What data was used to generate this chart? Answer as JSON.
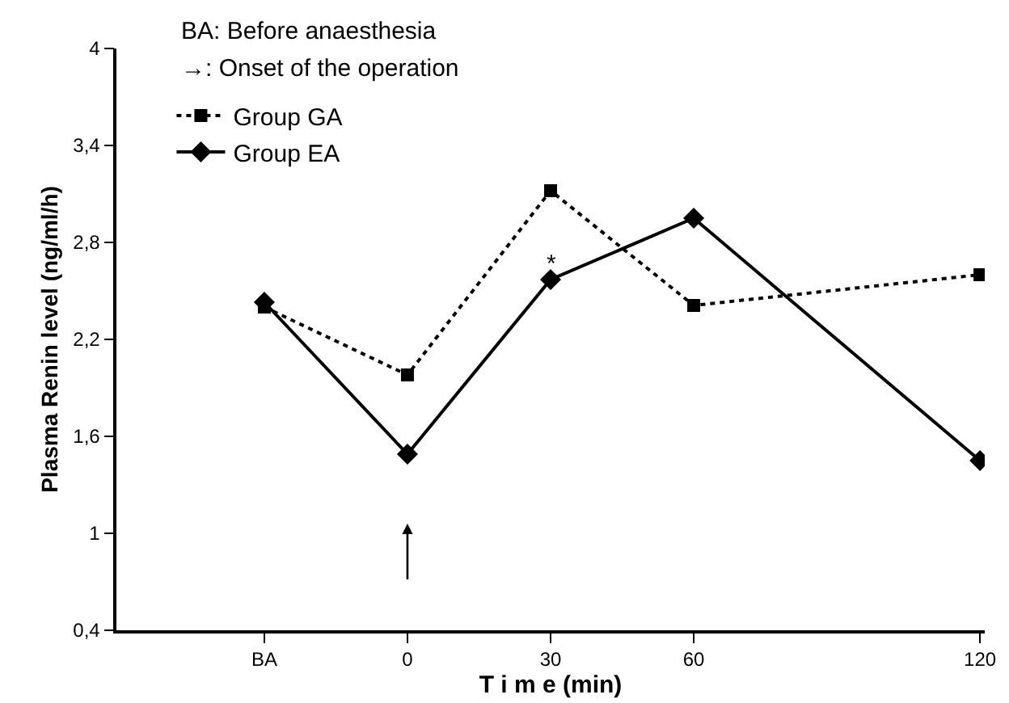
{
  "chart_data": {
    "type": "line",
    "xlabel": "T i m e (min)",
    "ylabel": "Plasma Renin level (ng/ml/h)",
    "x": [
      -30,
      0,
      30,
      60,
      120
    ],
    "xlim": [
      -61,
      121
    ],
    "xticks": [
      {
        "value": -30,
        "label": "BA"
      },
      0,
      30,
      60,
      120
    ],
    "ylim": [
      0.4,
      4
    ],
    "yticks": [
      {
        "value": 0.4,
        "label": "0,4"
      },
      1,
      {
        "value": 1.6,
        "label": "1,6"
      },
      {
        "value": 2.2,
        "label": "2,2"
      },
      {
        "value": 2.8,
        "label": "2,8"
      },
      {
        "value": 3.4,
        "label": "3,4"
      },
      4
    ],
    "grid": false,
    "legend": "top left",
    "series": [
      {
        "name": "Group GA",
        "color": "#000000",
        "marker": "square",
        "line_style": "dotted",
        "values": [
          2.4,
          1.98,
          3.12,
          2.41,
          2.6
        ]
      },
      {
        "name": "Group EA",
        "color": "#000000",
        "marker": "diamond",
        "line_style": "solid",
        "values": [
          2.43,
          1.49,
          2.57,
          2.95,
          1.45
        ]
      }
    ],
    "annotations": [
      "BA: Before anaesthesia",
      "→: Onset of the operation",
      {
        "text": "*",
        "x": 30,
        "y": 2.67
      }
    ]
  }
}
